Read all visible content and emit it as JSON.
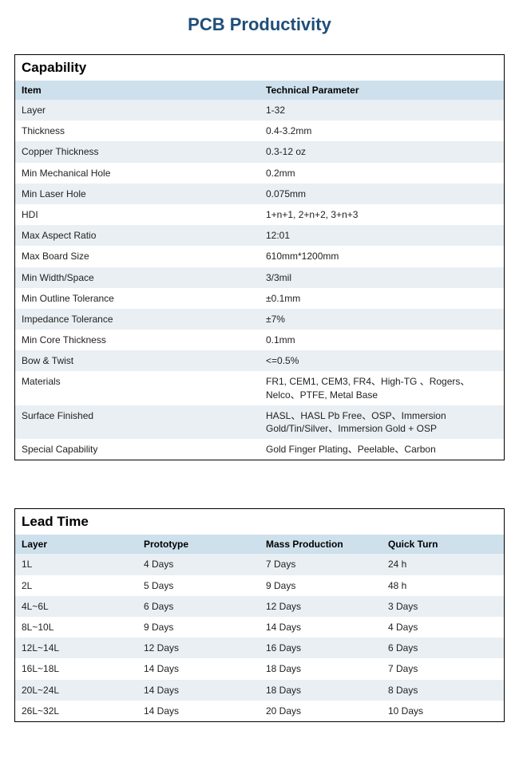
{
  "title": "PCB Productivity",
  "colors": {
    "title_text": "#1f4e79",
    "table_border": "#000000",
    "header_bg": "#cde0ec",
    "row_even_bg": "#e9eff3",
    "row_odd_bg": "#ffffff",
    "text": "#222222"
  },
  "capability": {
    "section_title": "Capability",
    "columns": [
      "Item",
      "Technical Parameter"
    ],
    "rows": [
      [
        "Layer",
        "1-32"
      ],
      [
        "Thickness",
        "0.4-3.2mm"
      ],
      [
        "Copper Thickness",
        "0.3-12 oz"
      ],
      [
        "Min Mechanical Hole",
        "0.2mm"
      ],
      [
        "Min Laser Hole",
        "0.075mm"
      ],
      [
        "HDI",
        "1+n+1, 2+n+2, 3+n+3"
      ],
      [
        "Max Aspect Ratio",
        "12:01"
      ],
      [
        "Max Board Size",
        "610mm*1200mm"
      ],
      [
        "Min Width/Space",
        "3/3mil"
      ],
      [
        "Min Outline Tolerance",
        "±0.1mm"
      ],
      [
        "Impedance Tolerance",
        "±7%"
      ],
      [
        "Min Core Thickness",
        "0.1mm"
      ],
      [
        "Bow & Twist",
        "<=0.5%"
      ],
      [
        "Materials",
        "FR1, CEM1, CEM3, FR4、High-TG 、Rogers、Nelco、PTFE, Metal Base"
      ],
      [
        "Surface Finished",
        "HASL、HASL Pb Free、OSP、Immersion Gold/Tin/Silver、Immersion Gold + OSP"
      ],
      [
        "Special Capability",
        "Gold Finger Plating、Peelable、Carbon"
      ]
    ]
  },
  "lead_time": {
    "section_title": "Lead Time",
    "columns": [
      "Layer",
      "Prototype",
      "Mass Production",
      "Quick Turn"
    ],
    "rows": [
      [
        "1L",
        "4 Days",
        "7 Days",
        "24 h"
      ],
      [
        "2L",
        "5 Days",
        "9 Days",
        "48 h"
      ],
      [
        "4L~6L",
        "6 Days",
        "12 Days",
        "3 Days"
      ],
      [
        "8L~10L",
        "9 Days",
        "14 Days",
        "4 Days"
      ],
      [
        "12L~14L",
        "12 Days",
        "16 Days",
        "6 Days"
      ],
      [
        "16L~18L",
        "14 Days",
        "18 Days",
        "7 Days"
      ],
      [
        "20L~24L",
        "14 Days",
        "18 Days",
        "8 Days"
      ],
      [
        "26L~32L",
        "14 Days",
        "20 Days",
        "10 Days"
      ]
    ]
  }
}
